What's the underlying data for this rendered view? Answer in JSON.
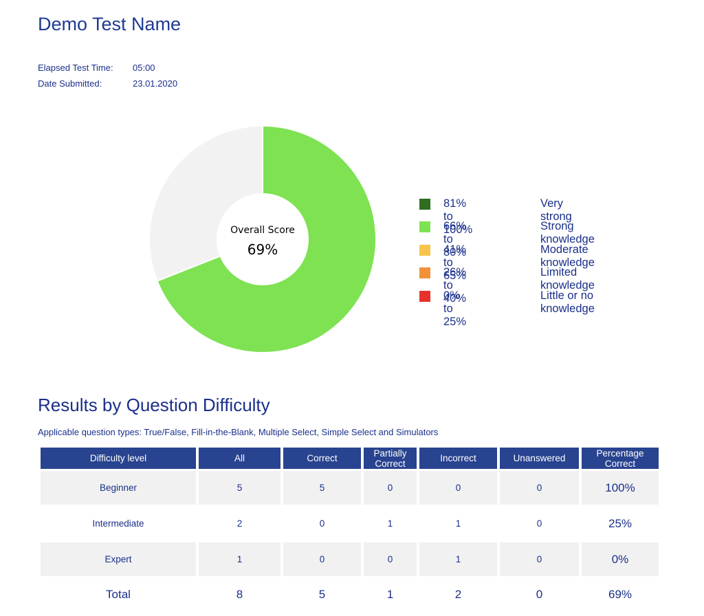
{
  "page": {
    "title": "Demo Test Name"
  },
  "meta": [
    {
      "label": "Elapsed Test Time:",
      "value": "05:00"
    },
    {
      "label": "Date Submitted:",
      "value": "23.01.2020"
    }
  ],
  "chart_data": {
    "type": "pie",
    "values": [
      69,
      31
    ],
    "center_label": "Overall Score",
    "center_value": "69%",
    "colors": [
      "#7ee252",
      "#f2f2f2"
    ]
  },
  "legend": [
    {
      "range": "81% to 100%",
      "label": "Very strong",
      "color": "#2e6e1e"
    },
    {
      "range": "66% to 80%",
      "label": "Strong knowledge",
      "color": "#7ee252"
    },
    {
      "range": "41% to 65%",
      "label": "Moderate knowledge",
      "color": "#f7c54a"
    },
    {
      "range": "26% to 40%",
      "label": "Limited knowledge",
      "color": "#f29138"
    },
    {
      "range": "0% to 25%",
      "label": "Little or no knowledge",
      "color": "#e7322b"
    }
  ],
  "difficulty": {
    "title": "Results by Question Difficulty",
    "note": "Applicable question types: True/False, Fill-in-the-Blank, Multiple Select, Simple Select and Simulators",
    "headers": [
      "Difficulty level",
      "All",
      "Correct",
      "Partially Correct",
      "Incorrect",
      "Unanswered",
      "Percentage Correct"
    ],
    "rows": [
      [
        "Beginner",
        "5",
        "5",
        "0",
        "0",
        "0",
        "100%"
      ],
      [
        "Intermediate",
        "2",
        "0",
        "1",
        "1",
        "0",
        "25%"
      ],
      [
        "Expert",
        "1",
        "0",
        "0",
        "1",
        "0",
        "0%"
      ]
    ],
    "total": [
      "Total",
      "8",
      "5",
      "1",
      "2",
      "0",
      "69%"
    ]
  }
}
